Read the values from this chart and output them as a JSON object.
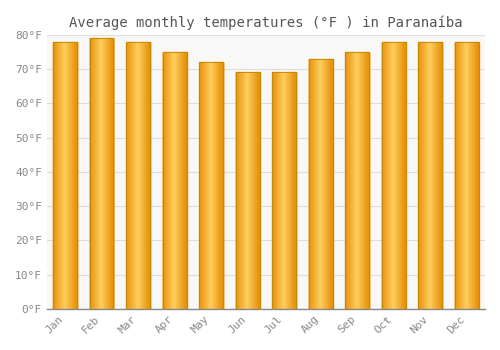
{
  "title": "Average monthly temperatures (°F ) in Paranaíba",
  "months": [
    "Jan",
    "Feb",
    "Mar",
    "Apr",
    "May",
    "Jun",
    "Jul",
    "Aug",
    "Sep",
    "Oct",
    "Nov",
    "Dec"
  ],
  "values": [
    78,
    79,
    78,
    75,
    72,
    69,
    69,
    73,
    75,
    78,
    78,
    78
  ],
  "bar_color_edge": "#E8920A",
  "bar_color_center": "#FFD060",
  "bar_color_mid": "#FFAA20",
  "background_color": "#FFFFFF",
  "plot_bg_color": "#F8F8F8",
  "grid_color": "#DDDDDD",
  "ylim": [
    0,
    80
  ],
  "yticks": [
    0,
    10,
    20,
    30,
    40,
    50,
    60,
    70,
    80
  ],
  "ytick_labels": [
    "0°F",
    "10°F",
    "20°F",
    "30°F",
    "40°F",
    "50°F",
    "60°F",
    "70°F",
    "80°F"
  ],
  "title_fontsize": 10,
  "tick_fontsize": 8,
  "bar_width": 0.65
}
